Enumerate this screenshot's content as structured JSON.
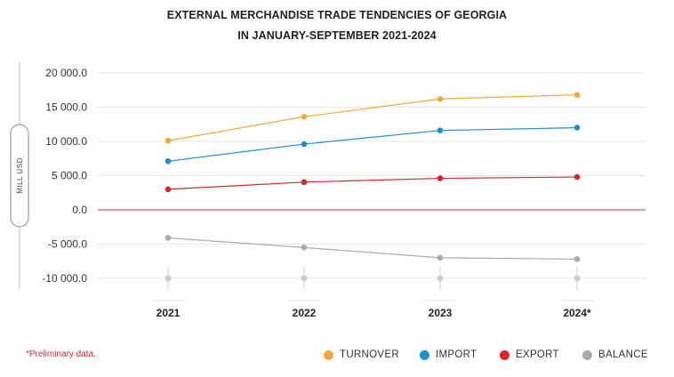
{
  "title_line1": "EXTERNAL MERCHANDISE TRADE TENDENCIES OF GEORGIA",
  "title_line2": "IN JANUARY-SEPTEMBER 2021-2024",
  "footnote": "*Preliminary data.",
  "chart_data": {
    "type": "line",
    "categories": [
      "2021",
      "2022",
      "2023",
      "2024*"
    ],
    "ylabel": "MILL USD",
    "ylim": [
      -10000,
      20000
    ],
    "yticks": [
      20000,
      15000,
      10000,
      5000,
      0,
      -5000,
      -10000
    ],
    "ytick_labels": [
      "20 000.0",
      "15 000.0",
      "10 000.0",
      "5 000.0",
      "0.0",
      "-5 000.0",
      "-10 000.0"
    ],
    "grid": true,
    "legend_position": "bottom-right",
    "series": [
      {
        "name": "TURNOVER",
        "color": "#f5a83a",
        "values": [
          10100,
          13600,
          16200,
          16800
        ]
      },
      {
        "name": "IMPORT",
        "color": "#1e8fd0",
        "values": [
          7100,
          9600,
          11600,
          12000
        ]
      },
      {
        "name": "EXPORT",
        "color": "#d7262b",
        "values": [
          3000,
          4050,
          4600,
          4800
        ]
      },
      {
        "name": "BALANCE",
        "color": "#aaaaaa",
        "values": [
          -4100,
          -5500,
          -7000,
          -7200
        ]
      }
    ],
    "colors": {
      "zero_line": "#b5333a",
      "grid": "#e6e6e6",
      "axis": "#bbbbbb",
      "x_markers": "#cccccc"
    }
  }
}
